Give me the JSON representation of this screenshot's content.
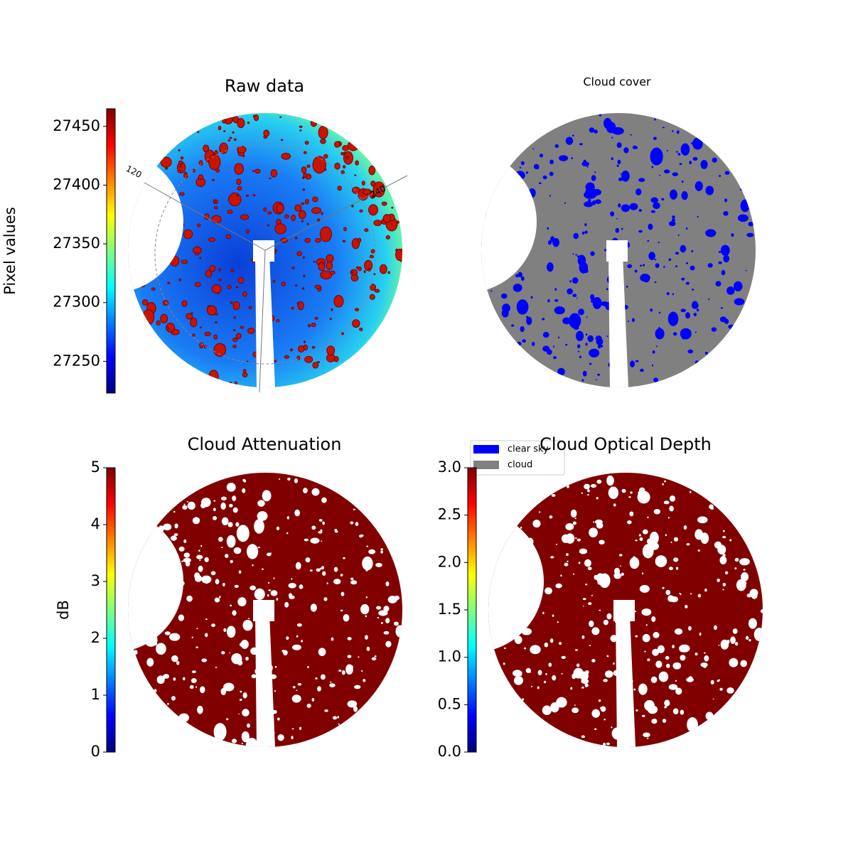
{
  "chart_data": [
    {
      "type": "image",
      "title": "Raw data",
      "colormap": "jet",
      "ylabel": "Pixel values",
      "ylim": [
        27223,
        27465
      ],
      "yticks": [
        27250,
        27300,
        27350,
        27400,
        27450
      ],
      "annotations": [
        "120",
        "240"
      ]
    },
    {
      "type": "image",
      "title": "Cloud cover",
      "series": [
        {
          "name": "clear sky",
          "color": "#0000ff"
        },
        {
          "name": "cloud",
          "color": "#808080"
        }
      ]
    },
    {
      "type": "image",
      "title": "Cloud Attenuation",
      "colormap": "jet",
      "ylabel": "dB",
      "ylim": [
        0,
        5
      ],
      "yticks": [
        0,
        1,
        2,
        3,
        4,
        5
      ]
    },
    {
      "type": "image",
      "title": "Cloud Optical Depth",
      "colormap": "jet",
      "ylim": [
        0,
        3
      ],
      "yticks": [
        {
          "value": 0,
          "label": "0.0"
        },
        0.5,
        {
          "value": 1,
          "label": "1.0"
        },
        1.5,
        {
          "value": 2,
          "label": "2.0"
        },
        2.5,
        {
          "value": 3,
          "label": "3.0"
        }
      ]
    }
  ]
}
